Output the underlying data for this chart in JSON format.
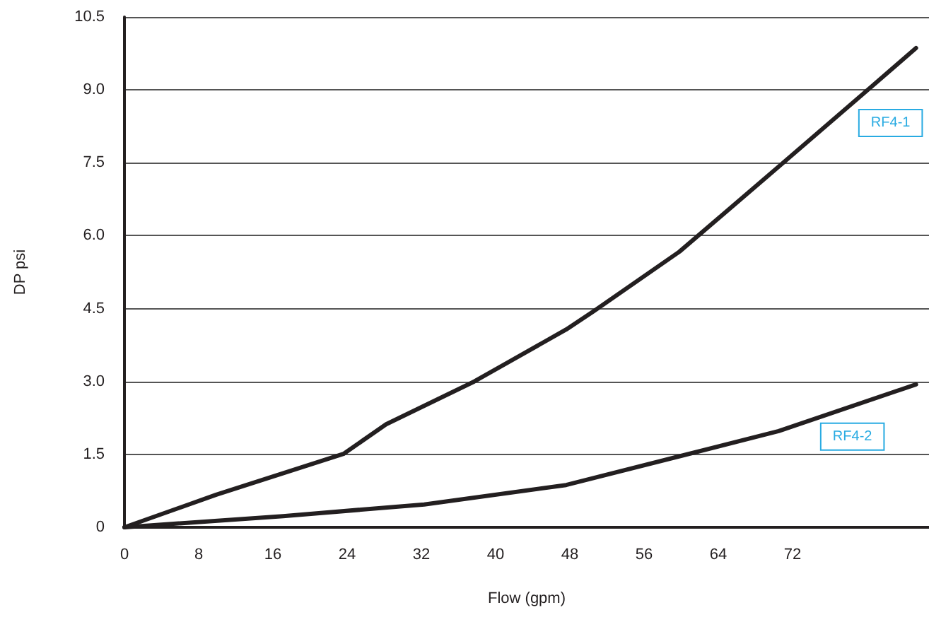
{
  "chart_data": {
    "type": "line",
    "xlabel": "Flow (gpm)",
    "ylabel": "DP psi",
    "xlim": [
      0,
      86.7
    ],
    "xticks": [
      0,
      8,
      16,
      24,
      32,
      40,
      48,
      56,
      64,
      72
    ],
    "ylim": [
      0,
      10.5
    ],
    "yticks": [
      0,
      1.5,
      {
        "value": 3,
        "label": "3.0"
      },
      4.5,
      {
        "value": 6,
        "label": "6.0"
      },
      7.5,
      {
        "value": 9,
        "label": "9.0"
      },
      10.5
    ],
    "grid": "y",
    "legend": false,
    "marker": "none",
    "line_style": "solid",
    "series": [
      {
        "name": "RF4-1",
        "color": "#231f20",
        "x": [
          0,
          9.9,
          23.6,
          28.2,
          37.7,
          47.6,
          50.6,
          59.8,
          70.5,
          80.4,
          85.3
        ],
        "values": [
          0,
          0.67,
          1.51,
          2.12,
          3.0,
          4.07,
          4.45,
          5.67,
          7.42,
          9.05,
          9.86
        ]
      },
      {
        "name": "RF4-2",
        "color": "#231f20",
        "x": [
          0,
          17.1,
          32.3,
          47.6,
          60.2,
          70.5,
          85.3
        ],
        "values": [
          0,
          0.23,
          0.47,
          0.87,
          1.48,
          1.98,
          2.94
        ]
      }
    ]
  }
}
